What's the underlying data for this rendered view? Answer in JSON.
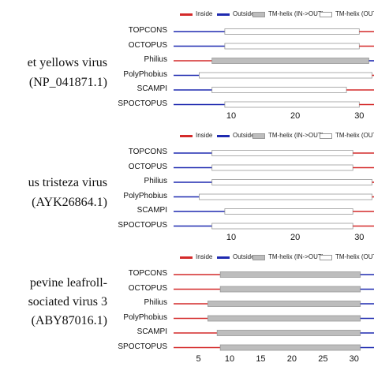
{
  "colors": {
    "inside": "#d42a2a",
    "outside": "#1f2ab0",
    "tm_in_out": "#bdbdbd",
    "tm_out_in": "#ffffff",
    "tm_border": "#999999"
  },
  "legend": {
    "inside": "Inside",
    "outside": "Outside",
    "tm_in_out": "TM-helix (IN->OUT)",
    "tm_out_in": "TM-helix (OUT-"
  },
  "panels": [
    {
      "virus_name": "et yellows virus",
      "accession": "(NP_041871.1)",
      "scale_min": 1,
      "scale_max": 36,
      "ticks": [
        "10",
        "20",
        "30"
      ],
      "tick_values": [
        10,
        20,
        30
      ],
      "methods": [
        {
          "name": "TOPCONS",
          "segments": [
            {
              "t": "outside",
              "a": 1,
              "b": 9
            },
            {
              "t": "tm_out_in",
              "a": 9,
              "b": 30
            },
            {
              "t": "inside",
              "a": 30,
              "b": 36
            }
          ]
        },
        {
          "name": "OCTOPUS",
          "segments": [
            {
              "t": "outside",
              "a": 1,
              "b": 9
            },
            {
              "t": "tm_out_in",
              "a": 9,
              "b": 30
            },
            {
              "t": "inside",
              "a": 30,
              "b": 36
            }
          ]
        },
        {
          "name": "Philius",
          "segments": [
            {
              "t": "inside",
              "a": 1,
              "b": 7
            },
            {
              "t": "tm_in_out",
              "a": 7,
              "b": 31.5
            },
            {
              "t": "outside",
              "a": 31.5,
              "b": 36
            }
          ]
        },
        {
          "name": "PolyPhobius",
          "segments": [
            {
              "t": "outside",
              "a": 1,
              "b": 5
            },
            {
              "t": "tm_out_in",
              "a": 5,
              "b": 32
            },
            {
              "t": "inside",
              "a": 32,
              "b": 36
            }
          ]
        },
        {
          "name": "SCAMPI",
          "segments": [
            {
              "t": "outside",
              "a": 1,
              "b": 7
            },
            {
              "t": "tm_out_in",
              "a": 7,
              "b": 28
            },
            {
              "t": "inside",
              "a": 28,
              "b": 36
            }
          ]
        },
        {
          "name": "SPOCTOPUS",
          "segments": [
            {
              "t": "outside",
              "a": 1,
              "b": 9
            },
            {
              "t": "tm_out_in",
              "a": 9,
              "b": 30
            },
            {
              "t": "inside",
              "a": 30,
              "b": 36
            }
          ]
        }
      ]
    },
    {
      "virus_name": "us tristeza virus",
      "accession": "(AYK26864.1)",
      "scale_min": 1,
      "scale_max": 36,
      "ticks": [
        "10",
        "20",
        "30"
      ],
      "tick_values": [
        10,
        20,
        30
      ],
      "methods": [
        {
          "name": "TOPCONS",
          "segments": [
            {
              "t": "outside",
              "a": 1,
              "b": 7
            },
            {
              "t": "tm_out_in",
              "a": 7,
              "b": 29
            },
            {
              "t": "inside",
              "a": 29,
              "b": 36
            }
          ]
        },
        {
          "name": "OCTOPUS",
          "segments": [
            {
              "t": "outside",
              "a": 1,
              "b": 7
            },
            {
              "t": "tm_out_in",
              "a": 7,
              "b": 29
            },
            {
              "t": "inside",
              "a": 29,
              "b": 36
            }
          ]
        },
        {
          "name": "Philius",
          "segments": [
            {
              "t": "outside",
              "a": 1,
              "b": 7
            },
            {
              "t": "tm_out_in",
              "a": 7,
              "b": 32
            },
            {
              "t": "inside",
              "a": 32,
              "b": 36
            }
          ]
        },
        {
          "name": "PolyPhobius",
          "segments": [
            {
              "t": "outside",
              "a": 1,
              "b": 5
            },
            {
              "t": "tm_out_in",
              "a": 5,
              "b": 32
            },
            {
              "t": "inside",
              "a": 32,
              "b": 36
            }
          ]
        },
        {
          "name": "SCAMPI",
          "segments": [
            {
              "t": "outside",
              "a": 1,
              "b": 9
            },
            {
              "t": "tm_out_in",
              "a": 9,
              "b": 29
            },
            {
              "t": "inside",
              "a": 29,
              "b": 36
            }
          ]
        },
        {
          "name": "SPOCTOPUS",
          "segments": [
            {
              "t": "outside",
              "a": 1,
              "b": 7
            },
            {
              "t": "tm_out_in",
              "a": 7,
              "b": 29
            },
            {
              "t": "inside",
              "a": 29,
              "b": 36
            }
          ]
        }
      ]
    },
    {
      "virus_name": "pevine leafroll-",
      "virus_name_2": "sociated virus 3",
      "accession": "(ABY87016.1)",
      "scale_min": 1,
      "scale_max": 37,
      "ticks": [
        "5",
        "10",
        "15",
        "20",
        "25",
        "30",
        "35"
      ],
      "tick_values": [
        5,
        10,
        15,
        20,
        25,
        30,
        35
      ],
      "methods": [
        {
          "name": "TOPCONS",
          "segments": [
            {
              "t": "inside",
              "a": 1,
              "b": 8.5
            },
            {
              "t": "tm_in_out",
              "a": 8.5,
              "b": 31
            },
            {
              "t": "outside",
              "a": 31,
              "b": 37
            }
          ]
        },
        {
          "name": "OCTOPUS",
          "segments": [
            {
              "t": "inside",
              "a": 1,
              "b": 8.5
            },
            {
              "t": "tm_in_out",
              "a": 8.5,
              "b": 31
            },
            {
              "t": "outside",
              "a": 31,
              "b": 37
            }
          ]
        },
        {
          "name": "Philius",
          "segments": [
            {
              "t": "inside",
              "a": 1,
              "b": 6.5
            },
            {
              "t": "tm_in_out",
              "a": 6.5,
              "b": 31
            },
            {
              "t": "outside",
              "a": 31,
              "b": 37
            }
          ]
        },
        {
          "name": "PolyPhobius",
          "segments": [
            {
              "t": "inside",
              "a": 1,
              "b": 6.5
            },
            {
              "t": "tm_in_out",
              "a": 6.5,
              "b": 31
            },
            {
              "t": "outside",
              "a": 31,
              "b": 37
            }
          ]
        },
        {
          "name": "SCAMPI",
          "segments": [
            {
              "t": "inside",
              "a": 1,
              "b": 8
            },
            {
              "t": "tm_in_out",
              "a": 8,
              "b": 31
            },
            {
              "t": "outside",
              "a": 31,
              "b": 37
            }
          ]
        },
        {
          "name": "SPOCTOPUS",
          "segments": [
            {
              "t": "inside",
              "a": 1,
              "b": 8.5
            },
            {
              "t": "tm_in_out",
              "a": 8.5,
              "b": 31
            },
            {
              "t": "outside",
              "a": 31,
              "b": 37
            }
          ]
        }
      ]
    }
  ]
}
